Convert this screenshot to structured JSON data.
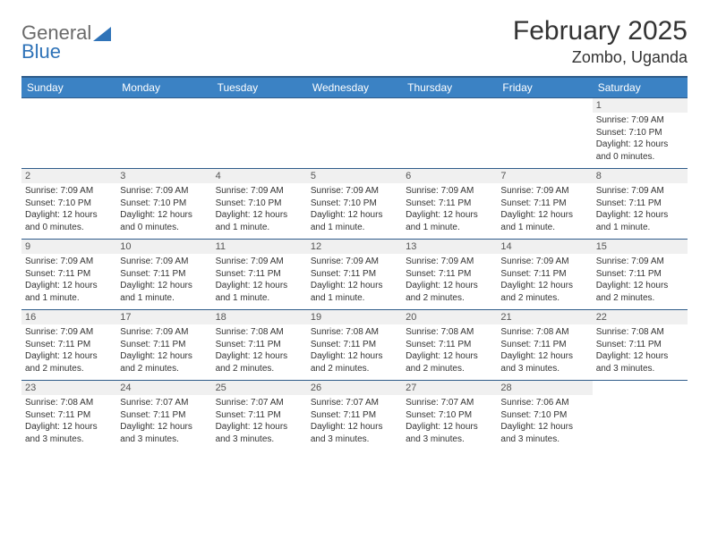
{
  "logo": {
    "word1": "General",
    "word2": "Blue",
    "color1": "#6a6a6a",
    "color2": "#2f73b8"
  },
  "title": "February 2025",
  "subtitle": "Zombo, Uganda",
  "colors": {
    "header_bg": "#3b82c4",
    "header_text": "#ffffff",
    "rule": "#2f5c8a",
    "daynum_bg": "#f0f0f0",
    "text": "#333333"
  },
  "weekday_labels": [
    "Sunday",
    "Monday",
    "Tuesday",
    "Wednesday",
    "Thursday",
    "Friday",
    "Saturday"
  ],
  "weeks": [
    [
      null,
      null,
      null,
      null,
      null,
      null,
      {
        "n": "1",
        "sunrise": "Sunrise: 7:09 AM",
        "sunset": "Sunset: 7:10 PM",
        "daylight": "Daylight: 12 hours and 0 minutes."
      }
    ],
    [
      {
        "n": "2",
        "sunrise": "Sunrise: 7:09 AM",
        "sunset": "Sunset: 7:10 PM",
        "daylight": "Daylight: 12 hours and 0 minutes."
      },
      {
        "n": "3",
        "sunrise": "Sunrise: 7:09 AM",
        "sunset": "Sunset: 7:10 PM",
        "daylight": "Daylight: 12 hours and 0 minutes."
      },
      {
        "n": "4",
        "sunrise": "Sunrise: 7:09 AM",
        "sunset": "Sunset: 7:10 PM",
        "daylight": "Daylight: 12 hours and 1 minute."
      },
      {
        "n": "5",
        "sunrise": "Sunrise: 7:09 AM",
        "sunset": "Sunset: 7:10 PM",
        "daylight": "Daylight: 12 hours and 1 minute."
      },
      {
        "n": "6",
        "sunrise": "Sunrise: 7:09 AM",
        "sunset": "Sunset: 7:11 PM",
        "daylight": "Daylight: 12 hours and 1 minute."
      },
      {
        "n": "7",
        "sunrise": "Sunrise: 7:09 AM",
        "sunset": "Sunset: 7:11 PM",
        "daylight": "Daylight: 12 hours and 1 minute."
      },
      {
        "n": "8",
        "sunrise": "Sunrise: 7:09 AM",
        "sunset": "Sunset: 7:11 PM",
        "daylight": "Daylight: 12 hours and 1 minute."
      }
    ],
    [
      {
        "n": "9",
        "sunrise": "Sunrise: 7:09 AM",
        "sunset": "Sunset: 7:11 PM",
        "daylight": "Daylight: 12 hours and 1 minute."
      },
      {
        "n": "10",
        "sunrise": "Sunrise: 7:09 AM",
        "sunset": "Sunset: 7:11 PM",
        "daylight": "Daylight: 12 hours and 1 minute."
      },
      {
        "n": "11",
        "sunrise": "Sunrise: 7:09 AM",
        "sunset": "Sunset: 7:11 PM",
        "daylight": "Daylight: 12 hours and 1 minute."
      },
      {
        "n": "12",
        "sunrise": "Sunrise: 7:09 AM",
        "sunset": "Sunset: 7:11 PM",
        "daylight": "Daylight: 12 hours and 1 minute."
      },
      {
        "n": "13",
        "sunrise": "Sunrise: 7:09 AM",
        "sunset": "Sunset: 7:11 PM",
        "daylight": "Daylight: 12 hours and 2 minutes."
      },
      {
        "n": "14",
        "sunrise": "Sunrise: 7:09 AM",
        "sunset": "Sunset: 7:11 PM",
        "daylight": "Daylight: 12 hours and 2 minutes."
      },
      {
        "n": "15",
        "sunrise": "Sunrise: 7:09 AM",
        "sunset": "Sunset: 7:11 PM",
        "daylight": "Daylight: 12 hours and 2 minutes."
      }
    ],
    [
      {
        "n": "16",
        "sunrise": "Sunrise: 7:09 AM",
        "sunset": "Sunset: 7:11 PM",
        "daylight": "Daylight: 12 hours and 2 minutes."
      },
      {
        "n": "17",
        "sunrise": "Sunrise: 7:09 AM",
        "sunset": "Sunset: 7:11 PM",
        "daylight": "Daylight: 12 hours and 2 minutes."
      },
      {
        "n": "18",
        "sunrise": "Sunrise: 7:08 AM",
        "sunset": "Sunset: 7:11 PM",
        "daylight": "Daylight: 12 hours and 2 minutes."
      },
      {
        "n": "19",
        "sunrise": "Sunrise: 7:08 AM",
        "sunset": "Sunset: 7:11 PM",
        "daylight": "Daylight: 12 hours and 2 minutes."
      },
      {
        "n": "20",
        "sunrise": "Sunrise: 7:08 AM",
        "sunset": "Sunset: 7:11 PM",
        "daylight": "Daylight: 12 hours and 2 minutes."
      },
      {
        "n": "21",
        "sunrise": "Sunrise: 7:08 AM",
        "sunset": "Sunset: 7:11 PM",
        "daylight": "Daylight: 12 hours and 3 minutes."
      },
      {
        "n": "22",
        "sunrise": "Sunrise: 7:08 AM",
        "sunset": "Sunset: 7:11 PM",
        "daylight": "Daylight: 12 hours and 3 minutes."
      }
    ],
    [
      {
        "n": "23",
        "sunrise": "Sunrise: 7:08 AM",
        "sunset": "Sunset: 7:11 PM",
        "daylight": "Daylight: 12 hours and 3 minutes."
      },
      {
        "n": "24",
        "sunrise": "Sunrise: 7:07 AM",
        "sunset": "Sunset: 7:11 PM",
        "daylight": "Daylight: 12 hours and 3 minutes."
      },
      {
        "n": "25",
        "sunrise": "Sunrise: 7:07 AM",
        "sunset": "Sunset: 7:11 PM",
        "daylight": "Daylight: 12 hours and 3 minutes."
      },
      {
        "n": "26",
        "sunrise": "Sunrise: 7:07 AM",
        "sunset": "Sunset: 7:11 PM",
        "daylight": "Daylight: 12 hours and 3 minutes."
      },
      {
        "n": "27",
        "sunrise": "Sunrise: 7:07 AM",
        "sunset": "Sunset: 7:10 PM",
        "daylight": "Daylight: 12 hours and 3 minutes."
      },
      {
        "n": "28",
        "sunrise": "Sunrise: 7:06 AM",
        "sunset": "Sunset: 7:10 PM",
        "daylight": "Daylight: 12 hours and 3 minutes."
      },
      null
    ]
  ]
}
